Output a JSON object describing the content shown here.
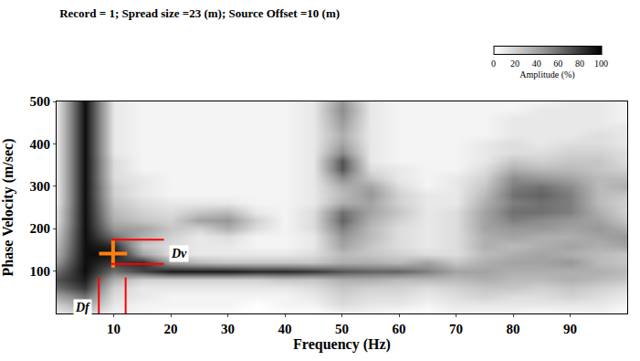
{
  "chart_data": {
    "type": "heatmap",
    "title": "Record = 1; Spread size =23 (m); Source Offset =10 (m)",
    "x_label": "Frequency (Hz)",
    "y_label": "Phase Velocity (m/sec)",
    "xlim": [
      0,
      100
    ],
    "xticks": [
      10,
      20,
      30,
      40,
      50,
      60,
      70,
      80,
      90
    ],
    "ylim": [
      0,
      500
    ],
    "yticks": [
      100,
      200,
      300,
      400,
      500
    ],
    "grid": false,
    "x": [
      0,
      5,
      10,
      15,
      20,
      25,
      30,
      35,
      40,
      45,
      50,
      55,
      60,
      65,
      70,
      75,
      80,
      85,
      90,
      95,
      100
    ],
    "y": [
      0,
      20,
      40,
      60,
      80,
      100,
      120,
      140,
      160,
      180,
      200,
      220,
      240,
      260,
      280,
      300,
      320,
      340,
      360,
      380,
      400,
      420,
      440,
      460,
      480,
      500
    ],
    "z": [
      [
        10,
        20,
        5,
        5,
        0,
        0,
        0,
        0,
        0,
        0,
        5,
        5,
        0,
        0,
        5,
        5,
        5,
        0,
        5,
        5,
        0
      ],
      [
        20,
        40,
        10,
        5,
        5,
        5,
        5,
        0,
        5,
        5,
        15,
        10,
        10,
        5,
        10,
        10,
        10,
        10,
        10,
        10,
        5
      ],
      [
        40,
        60,
        15,
        10,
        5,
        5,
        5,
        5,
        5,
        10,
        20,
        15,
        15,
        10,
        15,
        20,
        15,
        15,
        20,
        15,
        10
      ],
      [
        60,
        80,
        20,
        10,
        10,
        10,
        10,
        10,
        10,
        15,
        25,
        20,
        20,
        15,
        20,
        25,
        25,
        20,
        25,
        20,
        15
      ],
      [
        70,
        90,
        35,
        20,
        20,
        20,
        20,
        20,
        25,
        25,
        35,
        35,
        30,
        30,
        30,
        35,
        30,
        30,
        35,
        30,
        25
      ],
      [
        60,
        95,
        60,
        75,
        90,
        90,
        90,
        85,
        85,
        80,
        70,
        65,
        65,
        55,
        40,
        40,
        35,
        35,
        35,
        35,
        30
      ],
      [
        45,
        95,
        80,
        85,
        40,
        30,
        25,
        25,
        25,
        25,
        35,
        35,
        30,
        40,
        25,
        35,
        40,
        40,
        45,
        30,
        25
      ],
      [
        35,
        95,
        95,
        40,
        15,
        10,
        10,
        10,
        10,
        15,
        30,
        25,
        20,
        15,
        15,
        30,
        35,
        40,
        35,
        30,
        25
      ],
      [
        30,
        95,
        85,
        25,
        15,
        10,
        10,
        5,
        5,
        10,
        40,
        25,
        15,
        10,
        15,
        35,
        30,
        35,
        40,
        35,
        40
      ],
      [
        25,
        95,
        60,
        35,
        20,
        10,
        15,
        5,
        5,
        10,
        45,
        30,
        15,
        10,
        15,
        35,
        40,
        35,
        35,
        40,
        45
      ],
      [
        20,
        95,
        45,
        40,
        25,
        20,
        35,
        15,
        5,
        15,
        55,
        30,
        15,
        10,
        15,
        40,
        45,
        45,
        40,
        45,
        35
      ],
      [
        15,
        95,
        35,
        25,
        20,
        40,
        45,
        20,
        5,
        15,
        65,
        35,
        20,
        10,
        15,
        40,
        55,
        50,
        45,
        40,
        25
      ],
      [
        15,
        95,
        30,
        20,
        15,
        25,
        30,
        10,
        5,
        15,
        60,
        40,
        25,
        10,
        15,
        40,
        60,
        60,
        55,
        35,
        20
      ],
      [
        10,
        95,
        25,
        15,
        10,
        10,
        10,
        5,
        5,
        10,
        35,
        40,
        20,
        10,
        10,
        35,
        55,
        60,
        55,
        30,
        20
      ],
      [
        10,
        95,
        20,
        10,
        5,
        5,
        5,
        5,
        5,
        10,
        30,
        45,
        20,
        10,
        10,
        30,
        60,
        65,
        55,
        30,
        25
      ],
      [
        10,
        95,
        20,
        10,
        5,
        5,
        5,
        5,
        5,
        10,
        35,
        40,
        15,
        5,
        10,
        25,
        55,
        60,
        50,
        30,
        35
      ],
      [
        10,
        95,
        15,
        10,
        5,
        5,
        5,
        5,
        5,
        10,
        50,
        25,
        10,
        5,
        10,
        20,
        50,
        45,
        40,
        30,
        30
      ],
      [
        10,
        95,
        15,
        5,
        5,
        5,
        5,
        5,
        5,
        10,
        70,
        15,
        10,
        5,
        5,
        15,
        35,
        30,
        30,
        25,
        20
      ],
      [
        10,
        95,
        15,
        5,
        5,
        5,
        5,
        5,
        5,
        10,
        70,
        10,
        5,
        5,
        5,
        10,
        25,
        20,
        25,
        25,
        15
      ],
      [
        10,
        95,
        10,
        5,
        5,
        5,
        5,
        5,
        5,
        10,
        50,
        10,
        5,
        5,
        5,
        10,
        15,
        15,
        20,
        20,
        15
      ],
      [
        10,
        95,
        10,
        5,
        5,
        5,
        5,
        5,
        5,
        10,
        40,
        10,
        5,
        5,
        5,
        10,
        15,
        10,
        15,
        15,
        10
      ],
      [
        10,
        95,
        10,
        5,
        5,
        5,
        5,
        5,
        5,
        10,
        35,
        10,
        5,
        5,
        5,
        5,
        10,
        10,
        10,
        15,
        10
      ],
      [
        10,
        95,
        10,
        5,
        5,
        5,
        5,
        5,
        5,
        10,
        40,
        10,
        5,
        5,
        5,
        5,
        10,
        10,
        10,
        10,
        10
      ],
      [
        10,
        95,
        10,
        5,
        5,
        5,
        5,
        5,
        5,
        10,
        45,
        10,
        5,
        5,
        5,
        5,
        10,
        10,
        10,
        10,
        5
      ],
      [
        10,
        95,
        10,
        5,
        5,
        5,
        5,
        5,
        5,
        10,
        50,
        10,
        5,
        5,
        5,
        5,
        5,
        10,
        10,
        10,
        5
      ],
      [
        10,
        95,
        10,
        5,
        5,
        5,
        5,
        5,
        5,
        10,
        45,
        10,
        5,
        5,
        5,
        5,
        5,
        5,
        10,
        10,
        5
      ]
    ],
    "colorbar": {
      "title": "Amplitude (%)",
      "range": [
        0,
        100
      ],
      "ticks": [
        0,
        20,
        40,
        60,
        80,
        100
      ]
    },
    "color": "#ff0000",
    "pick": {
      "x": 9.9,
      "y": 141
    },
    "dv": {
      "x": [
        9.6,
        18.8
      ],
      "y": [
        117,
        174
      ]
    },
    "df": {
      "x": [
        7.4,
        12.1
      ],
      "y": [
        0,
        85
      ]
    },
    "annotations": [
      {
        "text": "Dv",
        "x": 21.5,
        "y": 141
      },
      {
        "text": "Df",
        "x": 4.5,
        "y": 15
      }
    ]
  }
}
